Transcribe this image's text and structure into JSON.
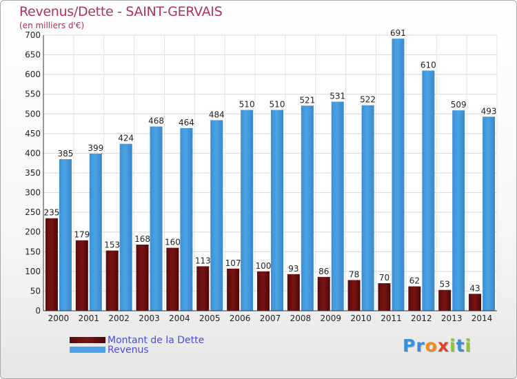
{
  "title": "Revenus/Dette - SAINT-GERVAIS",
  "subtitle": "(en milliers d'€)",
  "legend": [
    {
      "label": "Montant de la Dette",
      "color": "#7a1414"
    },
    {
      "label": "Revenus",
      "color": "#4aa3e6"
    }
  ],
  "logo": {
    "text": "Proxiti",
    "letters": [
      "P",
      "r",
      "o",
      "x",
      "i",
      "t",
      "i"
    ],
    "colors": [
      "#3a8fd8",
      "#3a8fd8",
      "#f08c1e",
      "#e0402a",
      "#8cc43c",
      "#3a8fd8",
      "#8cc43c"
    ]
  },
  "colors": {
    "dette": "#7a1414",
    "revenus": "#4aa3e6",
    "grid": "#d8d8d8"
  },
  "chart_data": {
    "type": "bar",
    "title": "Revenus/Dette - SAINT-GERVAIS",
    "ylabel": "(en milliers d'€)",
    "ylim": [
      0,
      700
    ],
    "yticks": [
      0,
      50,
      100,
      150,
      200,
      250,
      300,
      350,
      400,
      450,
      500,
      550,
      600,
      650,
      700
    ],
    "categories": [
      "2000",
      "2001",
      "2002",
      "2003",
      "2004",
      "2005",
      "2006",
      "2007",
      "2008",
      "2009",
      "2010",
      "2011",
      "2012",
      "2013",
      "2014"
    ],
    "series": [
      {
        "name": "Montant de la Dette",
        "values": [
          235,
          179,
          153,
          168,
          160,
          113,
          107,
          100,
          93,
          86,
          78,
          70,
          62,
          53,
          43
        ]
      },
      {
        "name": "Revenus",
        "values": [
          385,
          399,
          424,
          468,
          464,
          484,
          510,
          510,
          521,
          531,
          522,
          691,
          610,
          509,
          493
        ]
      }
    ],
    "grid": true,
    "legend_position": "bottom-left"
  }
}
